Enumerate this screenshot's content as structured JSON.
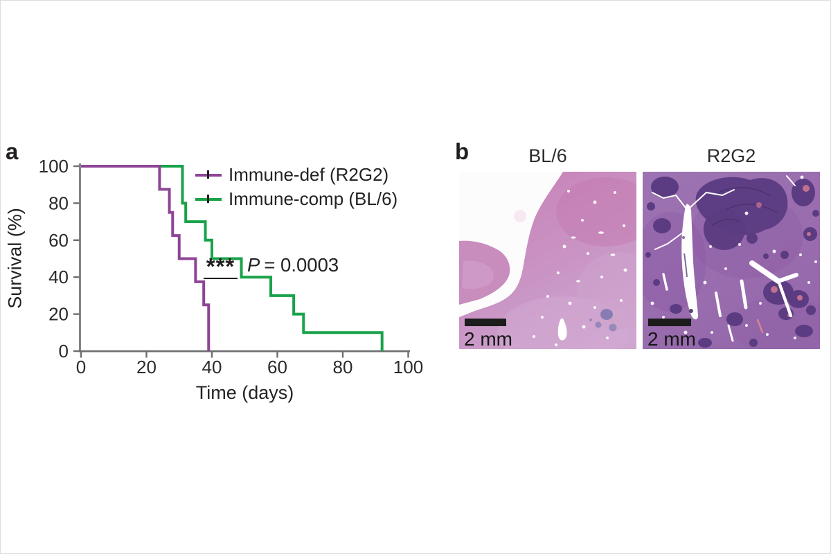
{
  "chart_data": {
    "type": "line",
    "subtype": "kaplan_meier_survival_step",
    "title": "",
    "xlabel": "Time (days)",
    "ylabel": "Survival (%)",
    "xlim": [
      0,
      100
    ],
    "ylim": [
      0,
      100
    ],
    "x_ticks": [
      0,
      20,
      40,
      60,
      80,
      100
    ],
    "y_ticks": [
      0,
      20,
      40,
      60,
      80,
      100
    ],
    "grid": false,
    "legend_position": "upper-right-inside",
    "significance": "***",
    "p_value_text": "P = 0.0003",
    "series": [
      {
        "name": "Immune-def (R2G2)",
        "color": "#8d4596",
        "steps_time_pct": [
          [
            0,
            100
          ],
          [
            24,
            87.5
          ],
          [
            27,
            75
          ],
          [
            28,
            62.5
          ],
          [
            30,
            50
          ],
          [
            35,
            37.5
          ],
          [
            37.5,
            25
          ],
          [
            39,
            0
          ]
        ]
      },
      {
        "name": "Immune-comp (BL/6)",
        "color": "#19a24a",
        "steps_time_pct": [
          [
            0,
            100
          ],
          [
            31,
            80
          ],
          [
            32,
            70
          ],
          [
            38,
            60
          ],
          [
            40,
            50
          ],
          [
            49,
            40
          ],
          [
            58,
            30
          ],
          [
            65,
            20
          ],
          [
            68,
            10
          ],
          [
            92,
            0
          ]
        ]
      }
    ]
  },
  "figure": {
    "panel_a": {
      "label": "a",
      "y_axis_title": "Survival (%)",
      "x_axis_title": "Time (days)",
      "legend": [
        {
          "label": "Immune-def (R2G2)"
        },
        {
          "label": "Immune-comp (BL/6)"
        }
      ],
      "annotation": {
        "stars": "***",
        "p_symbol": "P",
        "p_equals_value": "= 0.0003"
      }
    },
    "panel_b": {
      "label": "b",
      "images": [
        {
          "label": "BL/6",
          "scale_bar_text": "2 mm"
        },
        {
          "label": "R2G2",
          "scale_bar_text": "2 mm"
        }
      ]
    }
  }
}
